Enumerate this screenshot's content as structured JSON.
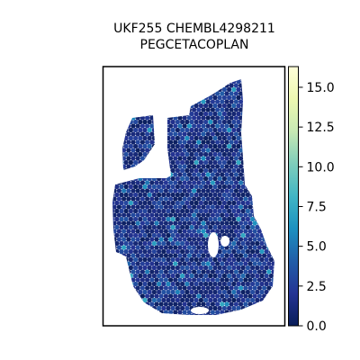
{
  "chart_data": {
    "type": "heatmap",
    "title_lines": [
      "UKF255 CHEMBL4298211",
      "PEGCETACOPLAN"
    ],
    "colormap": "YlGnBu_r",
    "colorbar": {
      "min": 0.0,
      "max": 16.3,
      "ticks": [
        0.0,
        2.5,
        5.0,
        7.5,
        10.0,
        12.5,
        15.0
      ],
      "tick_labels": [
        "0.0",
        "2.5",
        "5.0",
        "7.5",
        "10.0",
        "12.5",
        "15.0"
      ],
      "colors": [
        "#081d58",
        "#253494",
        "#225ea8",
        "#1d91c0",
        "#41b6c4",
        "#7fcdbb",
        "#c7e9b4",
        "#edf8b1",
        "#ffffd9"
      ]
    },
    "typical_value_range": [
      0.5,
      3.5
    ],
    "max_observed": 7.5
  }
}
